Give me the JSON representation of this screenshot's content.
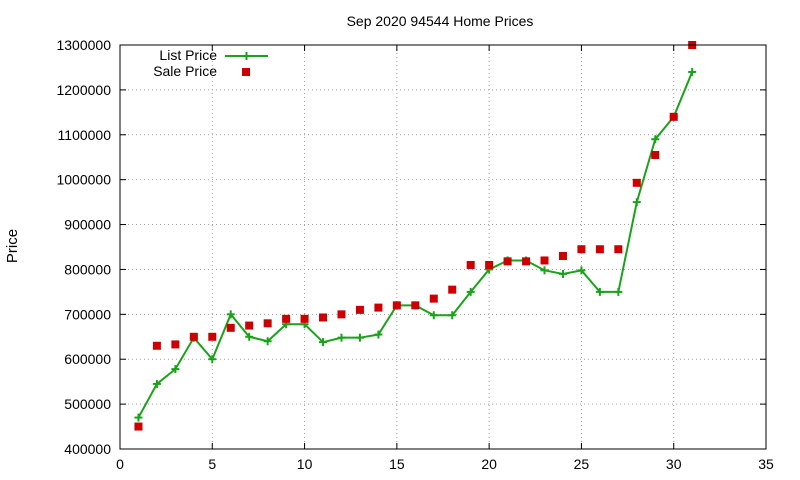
{
  "chart_data": {
    "type": "line",
    "title": "Sep 2020 94544 Home Prices",
    "xlabel": "",
    "ylabel": "Price",
    "xlim": [
      0,
      35
    ],
    "ylim": [
      400000,
      1300000
    ],
    "xticks": [
      0,
      5,
      10,
      15,
      20,
      25,
      30,
      35
    ],
    "yticks": [
      400000,
      500000,
      600000,
      700000,
      800000,
      900000,
      1000000,
      1100000,
      1200000,
      1300000
    ],
    "grid": true,
    "legend_position": "top-left",
    "series": [
      {
        "name": "List Price",
        "style": "line+cross",
        "color": "#1aa31a",
        "x": [
          1,
          2,
          3,
          4,
          5,
          6,
          7,
          8,
          9,
          10,
          11,
          12,
          13,
          14,
          15,
          16,
          17,
          18,
          19,
          20,
          21,
          22,
          23,
          24,
          25,
          26,
          27,
          28,
          29,
          30,
          31
        ],
        "y": [
          470000,
          545000,
          578000,
          648000,
          600000,
          700000,
          650000,
          640000,
          678000,
          678000,
          638000,
          648000,
          648000,
          655000,
          720000,
          720000,
          698000,
          698000,
          750000,
          800000,
          820000,
          820000,
          798000,
          790000,
          798000,
          750000,
          750000,
          950000,
          1090000,
          1140000,
          1240000
        ]
      },
      {
        "name": "Sale Price",
        "style": "square",
        "color": "#cc0000",
        "x": [
          1,
          2,
          3,
          4,
          5,
          6,
          7,
          8,
          9,
          10,
          11,
          12,
          13,
          14,
          15,
          16,
          17,
          18,
          19,
          20,
          21,
          22,
          23,
          24,
          25,
          26,
          27,
          28,
          29,
          30,
          31
        ],
        "y": [
          450000,
          630000,
          633000,
          650000,
          650000,
          670000,
          675000,
          680000,
          690000,
          690000,
          693000,
          700000,
          710000,
          715000,
          720000,
          720000,
          735000,
          755000,
          810000,
          810000,
          818000,
          818000,
          820000,
          830000,
          845000,
          845000,
          845000,
          993000,
          1055000,
          1140000,
          1300000
        ]
      }
    ]
  }
}
